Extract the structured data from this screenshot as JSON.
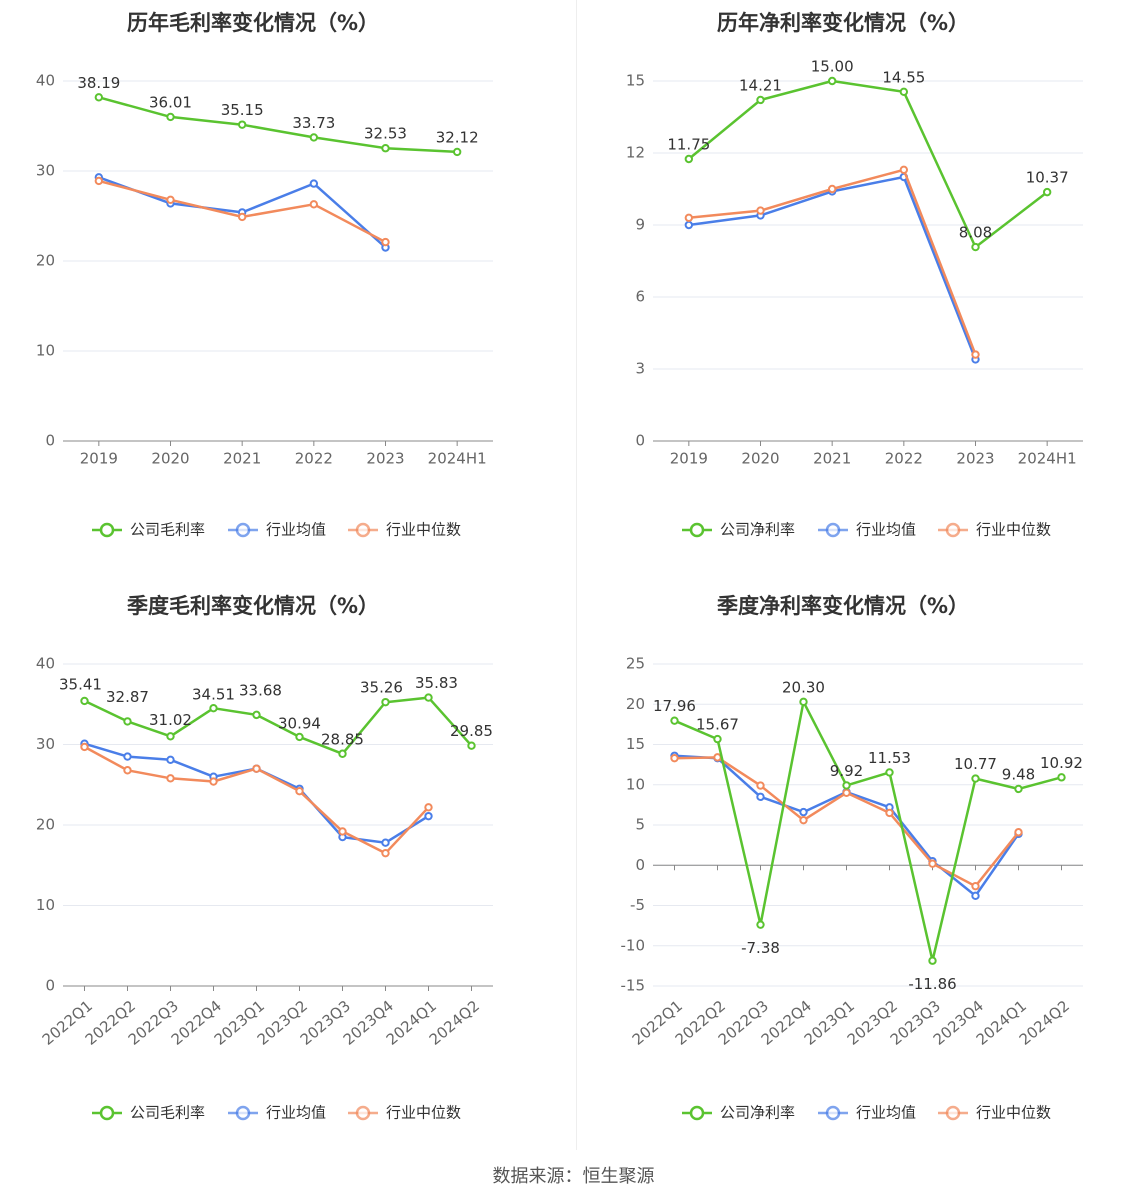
{
  "legend_labels": {
    "gross_company": "公司毛利率",
    "net_company": "公司净利率",
    "avg": "行业均值",
    "median": "行业中位数"
  },
  "colors": {
    "company": "#5ac330",
    "avg": "#4a7ee8",
    "median": "#f28a5c",
    "grid": "#e6e9f0",
    "axis": "#888888"
  },
  "source": "数据来源：恒生聚源",
  "chart_data": [
    {
      "type": "line",
      "title": "历年毛利率变化情况（%）",
      "categories": [
        "2019",
        "2020",
        "2021",
        "2022",
        "2023",
        "2024H1"
      ],
      "ylim": [
        0,
        40
      ],
      "yticks": [
        0,
        10,
        20,
        30,
        40
      ],
      "grid": true,
      "legend": "bottom-center",
      "series": [
        {
          "name": "公司毛利率",
          "values": [
            38.19,
            36.01,
            35.15,
            33.73,
            32.53,
            32.12
          ],
          "labels": [
            "38.19",
            "36.01",
            "35.15",
            "33.73",
            "32.53",
            "32.12"
          ]
        },
        {
          "name": "行业均值",
          "values": [
            29.3,
            26.4,
            25.4,
            28.6,
            21.5,
            null
          ]
        },
        {
          "name": "行业中位数",
          "values": [
            28.9,
            26.8,
            24.9,
            26.3,
            22.1,
            null
          ]
        }
      ]
    },
    {
      "type": "line",
      "title": "历年净利率变化情况（%）",
      "categories": [
        "2019",
        "2020",
        "2021",
        "2022",
        "2023",
        "2024H1"
      ],
      "ylim": [
        0,
        15
      ],
      "yticks": [
        0,
        3,
        6,
        9,
        12,
        15
      ],
      "grid": true,
      "legend": "bottom-center",
      "series": [
        {
          "name": "公司净利率",
          "values": [
            11.75,
            14.21,
            15.0,
            14.55,
            8.08,
            10.37
          ],
          "labels": [
            "11.75",
            "14.21",
            "15.00",
            "14.55",
            "8.08",
            "10.37"
          ]
        },
        {
          "name": "行业均值",
          "values": [
            9.0,
            9.4,
            10.4,
            11.0,
            3.4,
            null
          ]
        },
        {
          "name": "行业中位数",
          "values": [
            9.3,
            9.6,
            10.5,
            11.3,
            3.6,
            null
          ]
        }
      ]
    },
    {
      "type": "line",
      "title": "季度毛利率变化情况（%）",
      "categories": [
        "2022Q1",
        "2022Q2",
        "2022Q3",
        "2022Q4",
        "2023Q1",
        "2023Q2",
        "2023Q3",
        "2023Q4",
        "2024Q1",
        "2024Q2"
      ],
      "ylim": [
        0,
        40
      ],
      "yticks": [
        0,
        10,
        20,
        30,
        40
      ],
      "grid": true,
      "legend": "bottom-center",
      "series": [
        {
          "name": "公司毛利率",
          "values": [
            35.41,
            32.87,
            31.02,
            34.51,
            33.68,
            30.94,
            28.85,
            35.26,
            35.83,
            29.85
          ],
          "labels": [
            "35.41",
            "32.87",
            "31.02",
            "34.51",
            "33.68",
            "30.94",
            "28.85",
            "35.26",
            "35.83",
            "29.85"
          ]
        },
        {
          "name": "行业均值",
          "values": [
            30.1,
            28.5,
            28.1,
            26.0,
            27.0,
            24.5,
            18.5,
            17.8,
            21.1,
            null
          ]
        },
        {
          "name": "行业中位数",
          "values": [
            29.7,
            26.8,
            25.8,
            25.4,
            27.0,
            24.2,
            19.2,
            16.5,
            22.2,
            null
          ]
        }
      ]
    },
    {
      "type": "line",
      "title": "季度净利率变化情况（%）",
      "categories": [
        "2022Q1",
        "2022Q2",
        "2022Q3",
        "2022Q4",
        "2023Q1",
        "2023Q2",
        "2023Q3",
        "2023Q4",
        "2024Q1",
        "2024Q2"
      ],
      "ylim": [
        -15,
        25
      ],
      "yticks": [
        -15,
        -10,
        -5,
        0,
        5,
        10,
        15,
        20,
        25
      ],
      "grid": true,
      "legend": "bottom-center",
      "series": [
        {
          "name": "公司净利率",
          "values": [
            17.96,
            15.67,
            -7.38,
            20.3,
            9.92,
            11.53,
            -11.86,
            10.77,
            9.48,
            10.92
          ],
          "labels": [
            "17.96",
            "15.67",
            "-7.38",
            "20.30",
            "9.92",
            "11.53",
            "-11.86",
            "10.77",
            "9.48",
            "10.92"
          ]
        },
        {
          "name": "行业均值",
          "values": [
            13.6,
            13.3,
            8.5,
            6.6,
            9.1,
            7.2,
            0.5,
            -3.8,
            3.9,
            null
          ]
        },
        {
          "name": "行业中位数",
          "values": [
            13.3,
            13.4,
            9.9,
            5.6,
            9.0,
            6.5,
            0.2,
            -2.6,
            4.1,
            null
          ]
        }
      ]
    }
  ]
}
